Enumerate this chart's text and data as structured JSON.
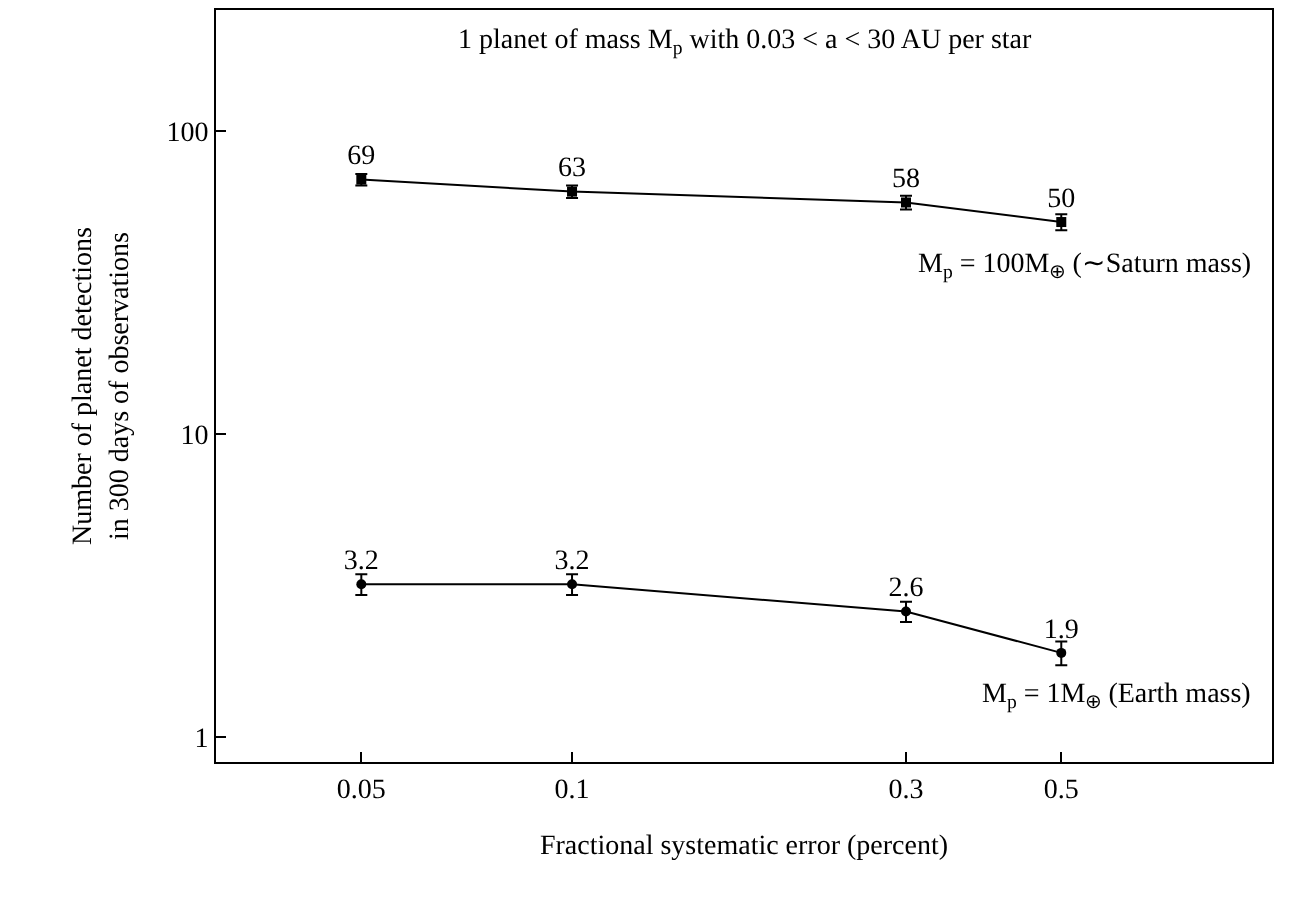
{
  "chart_data": {
    "type": "line",
    "xlabel": "Fractional systematic error (percent)",
    "ylabel": "Number of planet detections\nin 300 days of observations",
    "x": [
      0.05,
      0.1,
      0.3,
      0.5
    ],
    "series": [
      {
        "name": "M$_{p}$ = 100M$_{⊕}$ (∼Saturn mass)",
        "color": "#000000",
        "marker": "square",
        "values": [
          69,
          63,
          58,
          50
        ],
        "errors": [
          3,
          3,
          3,
          3
        ]
      },
      {
        "name": "M$_{p}$ = 1M$_{⊕}$ (Earth mass)",
        "color": "#000000",
        "marker": "circle",
        "values": [
          3.2,
          3.2,
          2.6,
          1.9
        ],
        "errors": [
          0.25,
          0.25,
          0.2,
          0.17
        ]
      }
    ],
    "annotations": [
      "1 planet of mass M$_{p}$ with 0.03 < a < 30 AU per star"
    ],
    "log": "xy",
    "xlim": [
      0.031,
      1.0
    ],
    "ylim": [
      0.83,
      250
    ],
    "xticks": [
      0.05,
      0.1,
      0.3,
      0.5
    ],
    "yticks": [
      1,
      10,
      100
    ],
    "data_labels": true,
    "legend": false,
    "line_style": "solid"
  }
}
